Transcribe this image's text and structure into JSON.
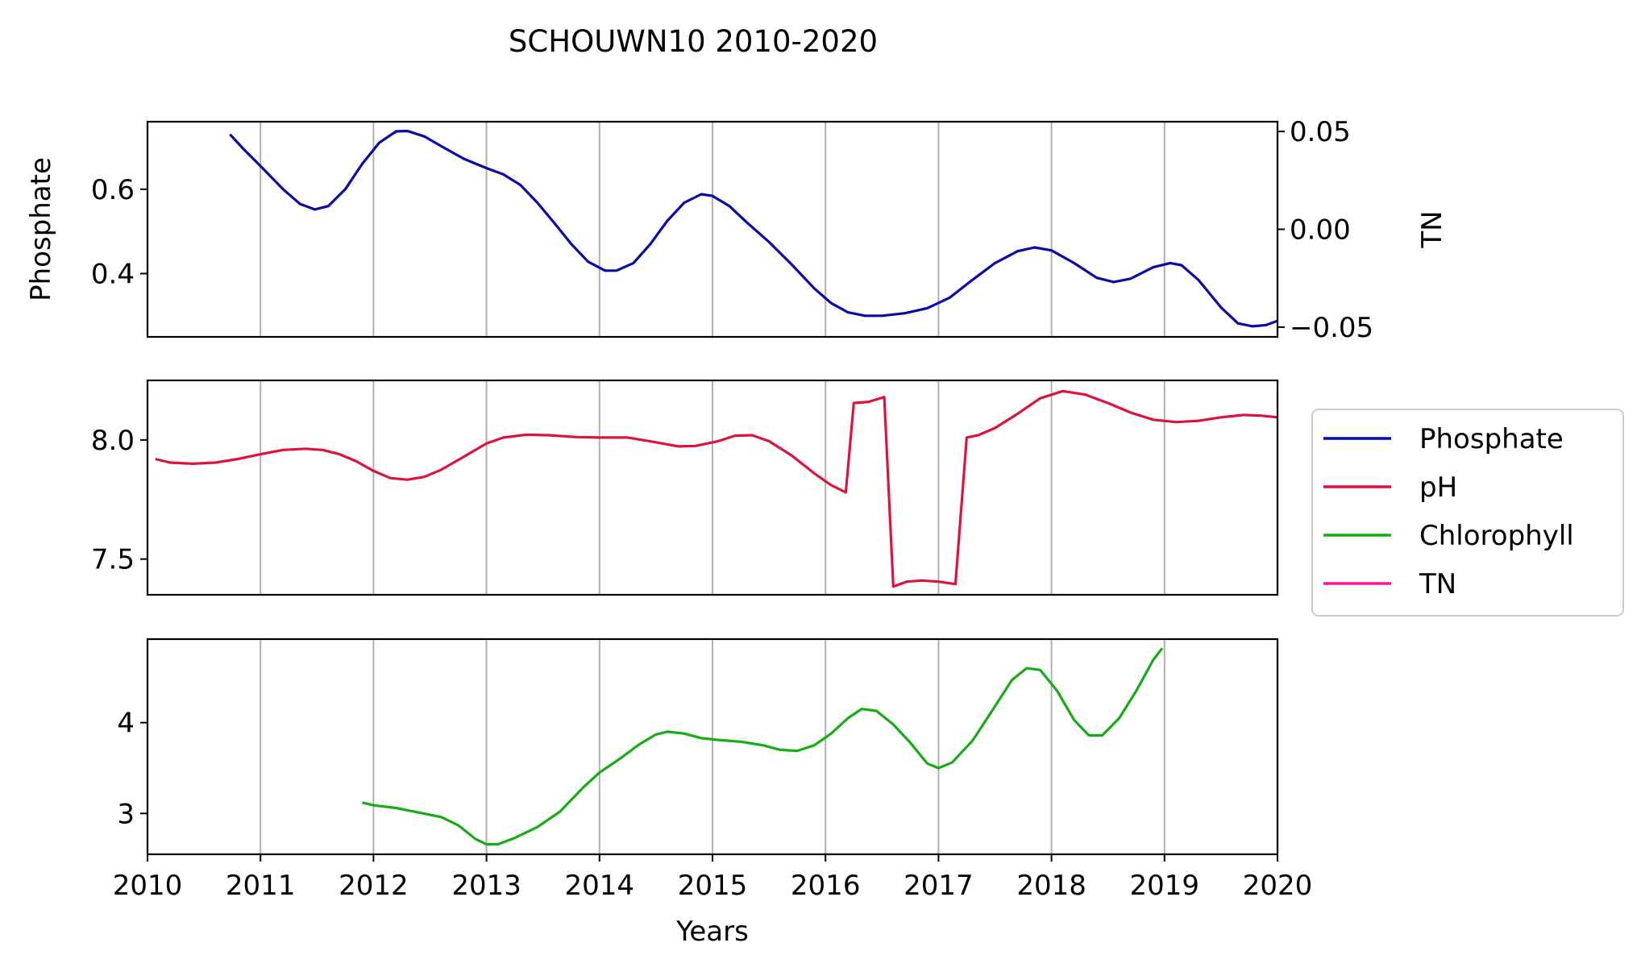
{
  "chart_data": {
    "type": "line",
    "title": "SCHOUWN10 2010-2020",
    "xlabel": "Years",
    "xlim": [
      2010,
      2020
    ],
    "x_ticks": [
      "2010",
      "2011",
      "2012",
      "2013",
      "2014",
      "2015",
      "2016",
      "2017",
      "2018",
      "2019",
      "2020"
    ],
    "grid": "vertical",
    "legend": {
      "placement": "right",
      "entries": [
        {
          "name": "Phosphate",
          "color": "#0a0aa8"
        },
        {
          "name": "pH",
          "color": "#dc143c"
        },
        {
          "name": "Chlorophyll",
          "color": "#16ac16"
        },
        {
          "name": "TN",
          "color": "#ff1493"
        }
      ]
    },
    "panels": [
      {
        "ylabel": "Phosphate",
        "ylim": [
          0.25,
          0.76
        ],
        "y_ticks": [
          0.4,
          0.6
        ],
        "y_tick_labels": [
          "0.4",
          "0.6"
        ],
        "right_axis": {
          "ylabel": "TN",
          "ylim": [
            -0.055,
            0.055
          ],
          "y_ticks": [
            -0.05,
            0.0,
            0.05
          ],
          "y_tick_labels": [
            "−0.05",
            "0.00",
            "0.05"
          ],
          "series": [
            {
              "name": "TN",
              "color": "#ff1493",
              "points": []
            }
          ]
        },
        "series": [
          {
            "name": "Phosphate",
            "color": "#0a0aa8",
            "points": [
              [
                2010.73,
                0.73
              ],
              [
                2010.85,
                0.695
              ],
              [
                2011.0,
                0.655
              ],
              [
                2011.2,
                0.6
              ],
              [
                2011.35,
                0.565
              ],
              [
                2011.48,
                0.552
              ],
              [
                2011.6,
                0.56
              ],
              [
                2011.75,
                0.6
              ],
              [
                2011.9,
                0.66
              ],
              [
                2012.05,
                0.71
              ],
              [
                2012.2,
                0.737
              ],
              [
                2012.3,
                0.738
              ],
              [
                2012.45,
                0.725
              ],
              [
                2012.6,
                0.702
              ],
              [
                2012.8,
                0.672
              ],
              [
                2013.0,
                0.65
              ],
              [
                2013.15,
                0.635
              ],
              [
                2013.3,
                0.61
              ],
              [
                2013.45,
                0.568
              ],
              [
                2013.6,
                0.52
              ],
              [
                2013.75,
                0.47
              ],
              [
                2013.9,
                0.428
              ],
              [
                2014.05,
                0.407
              ],
              [
                2014.15,
                0.407
              ],
              [
                2014.3,
                0.425
              ],
              [
                2014.45,
                0.47
              ],
              [
                2014.6,
                0.525
              ],
              [
                2014.75,
                0.568
              ],
              [
                2014.9,
                0.588
              ],
              [
                2015.0,
                0.584
              ],
              [
                2015.15,
                0.56
              ],
              [
                2015.3,
                0.522
              ],
              [
                2015.5,
                0.475
              ],
              [
                2015.7,
                0.422
              ],
              [
                2015.9,
                0.365
              ],
              [
                2016.05,
                0.33
              ],
              [
                2016.2,
                0.308
              ],
              [
                2016.35,
                0.3
              ],
              [
                2016.5,
                0.3
              ],
              [
                2016.7,
                0.306
              ],
              [
                2016.9,
                0.318
              ],
              [
                2017.1,
                0.343
              ],
              [
                2017.3,
                0.385
              ],
              [
                2017.5,
                0.425
              ],
              [
                2017.7,
                0.453
              ],
              [
                2017.85,
                0.462
              ],
              [
                2018.0,
                0.455
              ],
              [
                2018.2,
                0.425
              ],
              [
                2018.4,
                0.39
              ],
              [
                2018.55,
                0.38
              ],
              [
                2018.7,
                0.388
              ],
              [
                2018.9,
                0.415
              ],
              [
                2019.05,
                0.425
              ],
              [
                2019.15,
                0.42
              ],
              [
                2019.3,
                0.385
              ],
              [
                2019.5,
                0.32
              ],
              [
                2019.65,
                0.282
              ],
              [
                2019.78,
                0.275
              ],
              [
                2019.9,
                0.278
              ],
              [
                2020.0,
                0.288
              ]
            ]
          }
        ]
      },
      {
        "ylabel": "",
        "ylim": [
          7.35,
          8.25
        ],
        "y_ticks": [
          7.5,
          8.0
        ],
        "y_tick_labels": [
          "7.5",
          "8.0"
        ],
        "series": [
          {
            "name": "pH",
            "color": "#dc143c",
            "points": [
              [
                2010.07,
                7.92
              ],
              [
                2010.2,
                7.905
              ],
              [
                2010.4,
                7.9
              ],
              [
                2010.6,
                7.905
              ],
              [
                2010.8,
                7.92
              ],
              [
                2011.0,
                7.94
              ],
              [
                2011.2,
                7.958
              ],
              [
                2011.4,
                7.963
              ],
              [
                2011.55,
                7.958
              ],
              [
                2011.7,
                7.94
              ],
              [
                2011.85,
                7.91
              ],
              [
                2012.0,
                7.87
              ],
              [
                2012.15,
                7.84
              ],
              [
                2012.3,
                7.833
              ],
              [
                2012.45,
                7.845
              ],
              [
                2012.6,
                7.875
              ],
              [
                2012.8,
                7.93
              ],
              [
                2013.0,
                7.985
              ],
              [
                2013.15,
                8.01
              ],
              [
                2013.35,
                8.022
              ],
              [
                2013.55,
                8.02
              ],
              [
                2013.8,
                8.012
              ],
              [
                2014.0,
                8.01
              ],
              [
                2014.25,
                8.01
              ],
              [
                2014.5,
                7.99
              ],
              [
                2014.7,
                7.973
              ],
              [
                2014.85,
                7.975
              ],
              [
                2015.05,
                7.995
              ],
              [
                2015.2,
                8.018
              ],
              [
                2015.35,
                8.02
              ],
              [
                2015.5,
                7.995
              ],
              [
                2015.7,
                7.935
              ],
              [
                2015.9,
                7.86
              ],
              [
                2016.05,
                7.81
              ],
              [
                2016.18,
                7.78
              ],
              [
                2016.25,
                8.155
              ],
              [
                2016.38,
                8.16
              ],
              [
                2016.52,
                8.18
              ],
              [
                2016.6,
                7.385
              ],
              [
                2016.72,
                7.405
              ],
              [
                2016.85,
                7.41
              ],
              [
                2017.0,
                7.405
              ],
              [
                2017.15,
                7.395
              ],
              [
                2017.25,
                8.01
              ],
              [
                2017.35,
                8.02
              ],
              [
                2017.5,
                8.05
              ],
              [
                2017.7,
                8.11
              ],
              [
                2017.9,
                8.175
              ],
              [
                2018.1,
                8.205
              ],
              [
                2018.3,
                8.19
              ],
              [
                2018.5,
                8.155
              ],
              [
                2018.7,
                8.115
              ],
              [
                2018.9,
                8.085
              ],
              [
                2019.1,
                8.075
              ],
              [
                2019.3,
                8.08
              ],
              [
                2019.5,
                8.095
              ],
              [
                2019.7,
                8.105
              ],
              [
                2019.85,
                8.102
              ],
              [
                2020.0,
                8.095
              ]
            ]
          }
        ]
      },
      {
        "ylabel": "",
        "ylim": [
          2.55,
          4.92
        ],
        "y_ticks": [
          3,
          4
        ],
        "y_tick_labels": [
          "3",
          "4"
        ],
        "series": [
          {
            "name": "Chlorophyll",
            "color": "#16ac16",
            "points": [
              [
                2011.9,
                3.12
              ],
              [
                2012.0,
                3.09
              ],
              [
                2012.2,
                3.06
              ],
              [
                2012.4,
                3.01
              ],
              [
                2012.6,
                2.96
              ],
              [
                2012.75,
                2.87
              ],
              [
                2012.9,
                2.72
              ],
              [
                2013.0,
                2.66
              ],
              [
                2013.1,
                2.66
              ],
              [
                2013.25,
                2.73
              ],
              [
                2013.45,
                2.85
              ],
              [
                2013.65,
                3.02
              ],
              [
                2013.85,
                3.28
              ],
              [
                2014.0,
                3.45
              ],
              [
                2014.2,
                3.62
              ],
              [
                2014.35,
                3.76
              ],
              [
                2014.5,
                3.87
              ],
              [
                2014.6,
                3.9
              ],
              [
                2014.75,
                3.88
              ],
              [
                2014.9,
                3.83
              ],
              [
                2015.05,
                3.81
              ],
              [
                2015.25,
                3.79
              ],
              [
                2015.45,
                3.75
              ],
              [
                2015.6,
                3.7
              ],
              [
                2015.75,
                3.69
              ],
              [
                2015.9,
                3.75
              ],
              [
                2016.05,
                3.88
              ],
              [
                2016.2,
                4.05
              ],
              [
                2016.32,
                4.15
              ],
              [
                2016.45,
                4.13
              ],
              [
                2016.6,
                3.98
              ],
              [
                2016.75,
                3.78
              ],
              [
                2016.9,
                3.55
              ],
              [
                2017.0,
                3.5
              ],
              [
                2017.12,
                3.56
              ],
              [
                2017.3,
                3.8
              ],
              [
                2017.5,
                4.18
              ],
              [
                2017.65,
                4.47
              ],
              [
                2017.78,
                4.6
              ],
              [
                2017.9,
                4.58
              ],
              [
                2018.05,
                4.35
              ],
              [
                2018.2,
                4.03
              ],
              [
                2018.33,
                3.86
              ],
              [
                2018.45,
                3.86
              ],
              [
                2018.6,
                4.05
              ],
              [
                2018.75,
                4.35
              ],
              [
                2018.9,
                4.69
              ],
              [
                2018.98,
                4.82
              ]
            ]
          }
        ]
      }
    ]
  }
}
